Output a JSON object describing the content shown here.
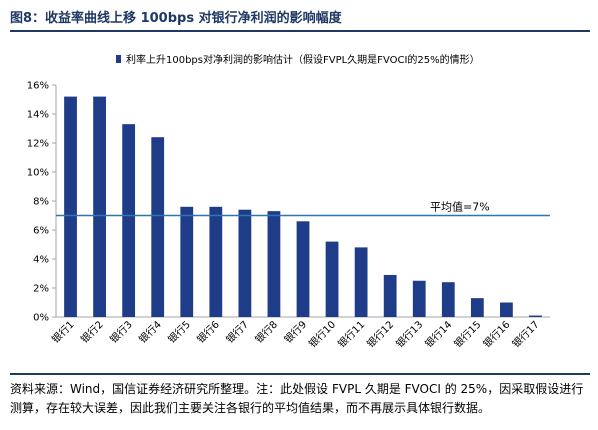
{
  "figure": {
    "title": "图8：收益率曲线上移 100bps 对银行净利润的影响幅度",
    "source_note": "资料来源：Wind，国信证券经济研究所整理。注：此处假设 FVPL 久期是 FVOCI 的 25%，因采取假设进行测算，存在较大误差，因此我们主要关注各银行的平均值结果，而不再展示具体银行数据。"
  },
  "colors": {
    "bar": "#1f3c88",
    "avg_line": "#2e75b6",
    "axis": "#a6a6a6",
    "title": "#1f3864"
  },
  "chart_data": {
    "type": "bar",
    "title": "",
    "xlabel": "",
    "ylabel": "",
    "legend": {
      "position": "top",
      "entries": [
        "利率上升100bps对净利润的影响估计（假设FVPL久期是FVOCI的25%的情形）"
      ]
    },
    "categories": [
      "银行1",
      "银行2",
      "银行3",
      "银行4",
      "银行5",
      "银行6",
      "银行7",
      "银行8",
      "银行9",
      "银行10",
      "银行11",
      "银行12",
      "银行13",
      "银行14",
      "银行15",
      "银行16",
      "银行17"
    ],
    "values": [
      15.2,
      15.2,
      13.3,
      12.4,
      7.6,
      7.6,
      7.4,
      7.3,
      6.6,
      5.2,
      4.8,
      2.9,
      2.5,
      2.4,
      1.3,
      1.0,
      0.1
    ],
    "reference_line": {
      "value": 7,
      "label": "平均值=7%"
    },
    "ylim": [
      0,
      16
    ],
    "yticks": [
      0,
      2,
      4,
      6,
      8,
      10,
      12,
      14,
      16
    ],
    "ytick_labels": [
      "0%",
      "2%",
      "4%",
      "6%",
      "8%",
      "10%",
      "12%",
      "14%",
      "16%"
    ],
    "grid": false
  }
}
